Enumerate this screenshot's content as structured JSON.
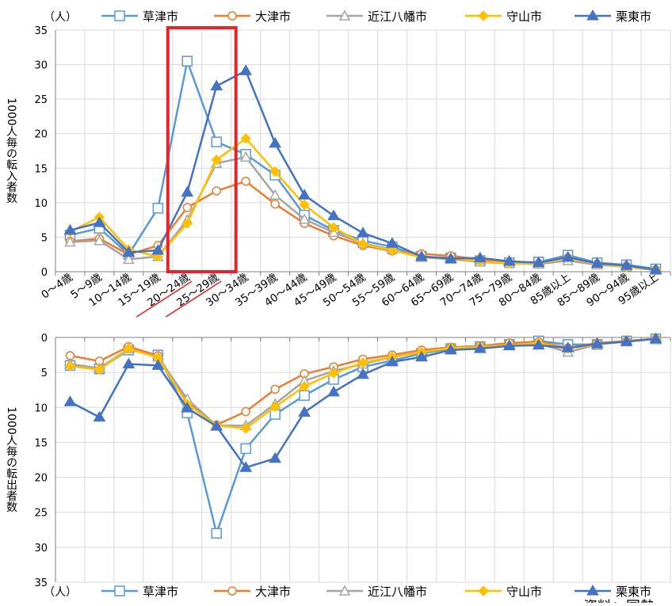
{
  "chart_data": [
    {
      "type": "line",
      "unit_label": "（人）",
      "ylabel": "1000人毎の転入者数",
      "ylim": [
        0,
        35
      ],
      "yticks": [
        0,
        5,
        10,
        15,
        20,
        25,
        30,
        35
      ],
      "grid": true,
      "legend_position": "top",
      "highlight": {
        "from_category": "20～24歳",
        "to_category": "25～29歳",
        "color": "#e8232a"
      },
      "categories": [
        "0～4歳",
        "5～9歳",
        "10～14歳",
        "15～19歳",
        "20～24歳",
        "25～29歳",
        "30～34歳",
        "35～39歳",
        "40～44歳",
        "45～49歳",
        "50～54歳",
        "55～59歳",
        "60～64歳",
        "65～69歳",
        "70～74歳",
        "75～79歳",
        "80～84歳",
        "85歳以上",
        "85～89歳",
        "90～94歳",
        "95歳以上"
      ],
      "series": [
        {
          "name": "草津市",
          "color": "#5b9bd5",
          "marker": "square-open",
          "values": [
            5.3,
            6.3,
            2.5,
            9.2,
            30.5,
            18.8,
            17.0,
            14.0,
            8.2,
            6.0,
            4.5,
            3.6,
            2.2,
            2.0,
            1.6,
            1.3,
            1.4,
            2.4,
            1.3,
            1.0,
            0.4
          ]
        },
        {
          "name": "大津市",
          "color": "#ed7d31",
          "marker": "circle-open",
          "values": [
            4.4,
            4.8,
            2.5,
            3.8,
            9.3,
            11.7,
            13.1,
            9.8,
            7.0,
            5.2,
            3.8,
            3.0,
            2.6,
            2.3,
            1.8,
            1.3,
            1.2,
            2.0,
            1.1,
            0.8,
            0.3
          ]
        },
        {
          "name": "近江八幡市",
          "color": "#a5a5a5",
          "marker": "triangle-open",
          "values": [
            4.3,
            4.5,
            1.8,
            2.2,
            7.5,
            15.7,
            16.6,
            11.1,
            7.6,
            5.7,
            4.1,
            3.2,
            2.1,
            1.8,
            1.4,
            1.2,
            1.1,
            1.6,
            1.0,
            0.7,
            0.2
          ]
        },
        {
          "name": "守山市",
          "color": "#ffc000",
          "marker": "diamond",
          "values": [
            5.8,
            7.9,
            3.2,
            2.2,
            7.0,
            16.2,
            19.3,
            14.5,
            9.7,
            6.4,
            4.0,
            3.1,
            2.1,
            1.9,
            1.5,
            1.2,
            1.2,
            2.0,
            1.1,
            0.7,
            0.3
          ]
        },
        {
          "name": "栗東市",
          "color": "#4472c4",
          "marker": "triangle",
          "values": [
            6.0,
            7.1,
            2.8,
            3.1,
            11.5,
            26.9,
            29.1,
            18.6,
            11.1,
            8.1,
            5.6,
            4.1,
            2.2,
            1.9,
            2.0,
            1.5,
            1.3,
            2.1,
            1.2,
            0.9,
            0.3
          ]
        }
      ]
    },
    {
      "type": "line",
      "unit_label": "（人）",
      "ylabel": "1000人毎の転出者数",
      "ylim": [
        0,
        35
      ],
      "yticks": [
        0,
        5,
        10,
        15,
        20,
        25,
        30,
        35
      ],
      "y_inverted": true,
      "grid": true,
      "legend_position": "bottom",
      "series": [
        {
          "name": "草津市",
          "color": "#5b9bd5",
          "marker": "square-open",
          "values": [
            4.0,
            4.5,
            1.8,
            2.5,
            10.8,
            28.0,
            15.9,
            11.0,
            8.3,
            6.0,
            4.2,
            3.3,
            2.3,
            1.6,
            1.3,
            1.0,
            0.5,
            1.0,
            1.0,
            0.5,
            0.2
          ]
        },
        {
          "name": "大津市",
          "color": "#ed7d31",
          "marker": "circle-open",
          "values": [
            2.6,
            3.4,
            1.3,
            2.6,
            9.3,
            12.5,
            10.6,
            7.4,
            5.2,
            4.2,
            3.1,
            2.5,
            1.8,
            1.4,
            1.2,
            0.8,
            0.6,
            1.5,
            0.8,
            0.5,
            0.2
          ]
        },
        {
          "name": "近江八幡市",
          "color": "#a5a5a5",
          "marker": "triangle-open",
          "values": [
            3.8,
            4.4,
            1.6,
            2.8,
            8.8,
            12.6,
            12.6,
            9.5,
            6.2,
            4.8,
            3.8,
            2.8,
            2.1,
            1.5,
            1.3,
            1.1,
            0.9,
            2.1,
            1.0,
            0.6,
            0.2
          ]
        },
        {
          "name": "守山市",
          "color": "#ffc000",
          "marker": "diamond",
          "values": [
            4.1,
            4.6,
            1.6,
            2.9,
            9.5,
            12.6,
            13.0,
            9.9,
            7.0,
            5.1,
            3.6,
            2.8,
            2.1,
            1.5,
            1.4,
            1.1,
            0.8,
            1.6,
            1.0,
            0.6,
            0.2
          ]
        },
        {
          "name": "栗東市",
          "color": "#4472c4",
          "marker": "triangle",
          "values": [
            9.2,
            11.4,
            3.8,
            4.0,
            10.1,
            12.7,
            18.6,
            17.3,
            10.7,
            7.8,
            5.3,
            3.5,
            2.8,
            1.8,
            1.6,
            1.2,
            1.1,
            1.5,
            0.9,
            0.6,
            0.2
          ]
        }
      ]
    }
  ],
  "footer": {
    "source_text": "資料：国勢"
  }
}
